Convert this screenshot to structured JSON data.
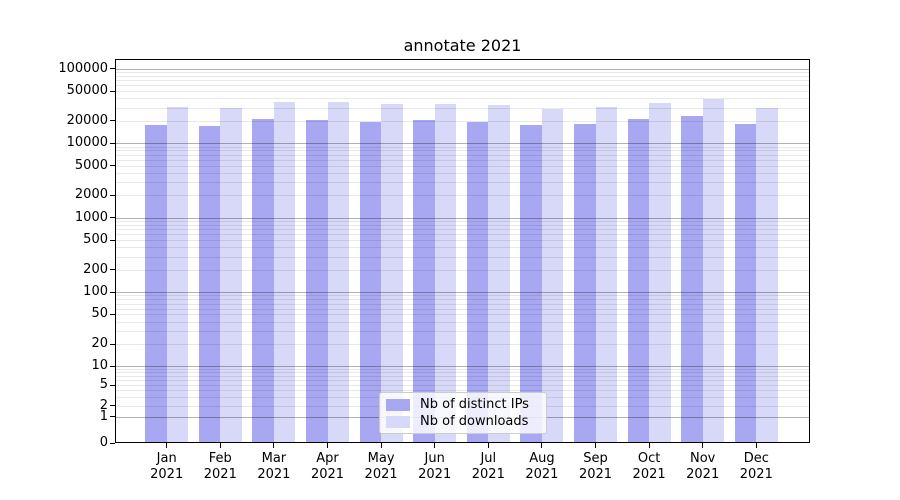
{
  "chart_data": {
    "type": "bar",
    "title": "annotate 2021",
    "categories": [
      "Jan",
      "Feb",
      "Mar",
      "Apr",
      "May",
      "Jun",
      "Jul",
      "Aug",
      "Sep",
      "Oct",
      "Nov",
      "Dec"
    ],
    "category_year": "2021",
    "series": [
      {
        "name": "Nb of distinct IPs",
        "color": "#a7a7f2",
        "values": [
          17700,
          17000,
          21100,
          20500,
          19300,
          20700,
          19100,
          17700,
          18300,
          20900,
          23200,
          18000
        ]
      },
      {
        "name": "Nb of downloads",
        "color": "#d8d8f8",
        "values": [
          30600,
          29600,
          35800,
          35300,
          33400,
          33600,
          33000,
          29100,
          30600,
          34900,
          38800,
          30000
        ]
      }
    ],
    "xlabel": "",
    "ylabel": "",
    "y_scale": "symlog",
    "y_ticks": [
      0,
      1,
      2,
      5,
      10,
      20,
      50,
      100,
      200,
      500,
      1000,
      2000,
      5000,
      10000,
      20000,
      50000,
      100000
    ],
    "ylim": [
      0,
      135000
    ],
    "grid": true,
    "legend_position": "lower center"
  }
}
